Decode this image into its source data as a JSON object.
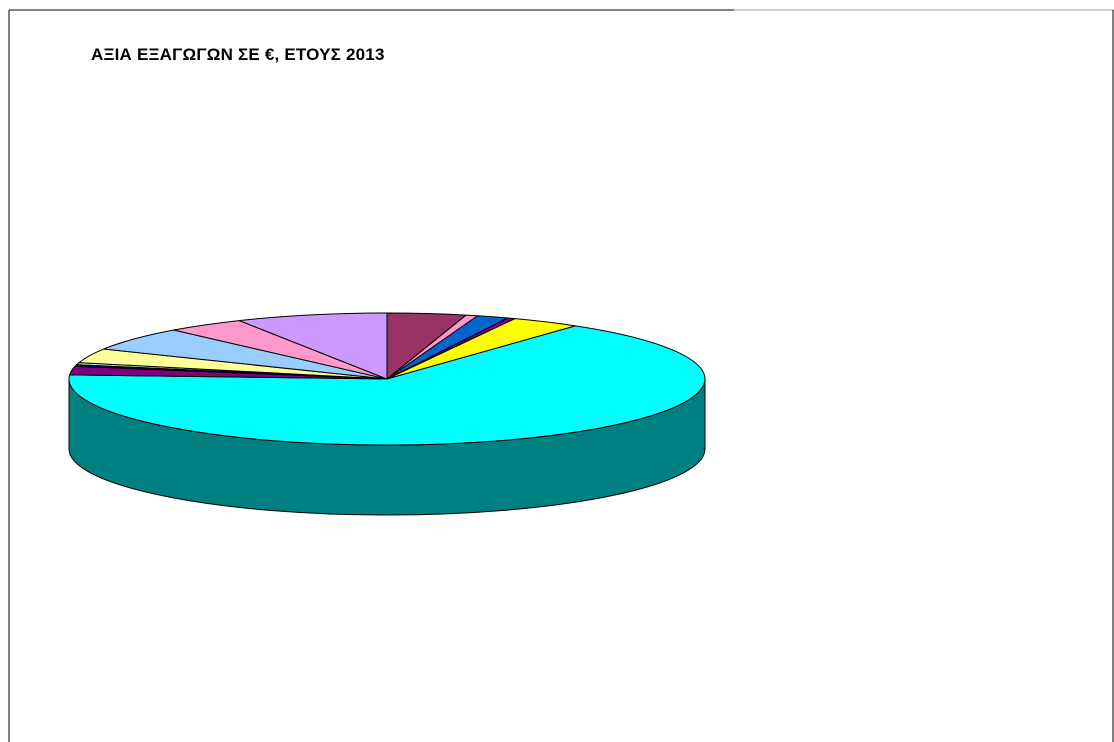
{
  "chart_data": {
    "type": "pie",
    "title": "ΑΞΙΑ ΕΞΑΓΩΓΩΝ ΣΕ €, ΕΤΟΥΣ 2013",
    "three_d": true,
    "legend": "none",
    "slices": [
      {
        "value": 4.0,
        "color": "#993366"
      },
      {
        "value": 0.6,
        "color": "#FF99CC"
      },
      {
        "value": 1.6,
        "color": "#0066CC"
      },
      {
        "value": 0.4,
        "color": "#800080"
      },
      {
        "value": 3.5,
        "color": "#FFFF00"
      },
      {
        "value": 65.9,
        "color": "#00FFFF"
      },
      {
        "value": 2.1,
        "color": "#800080"
      },
      {
        "value": 0.4,
        "color": "#000080"
      },
      {
        "value": 0.5,
        "color": "#CCFFFF"
      },
      {
        "value": 3.5,
        "color": "#FFFF99"
      },
      {
        "value": 5.8,
        "color": "#99CCFF"
      },
      {
        "value": 4.0,
        "color": "#FF99CC"
      },
      {
        "value": 7.7,
        "color": "#CC99FF"
      }
    ]
  }
}
